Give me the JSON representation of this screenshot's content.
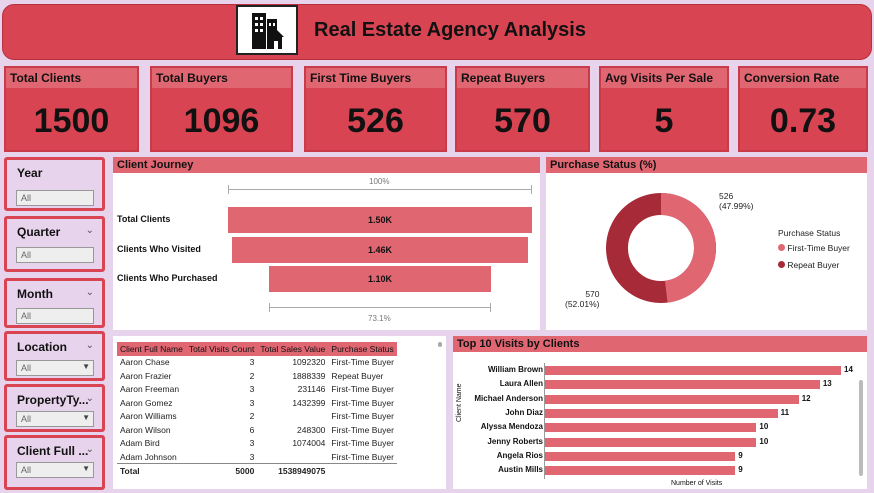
{
  "header": {
    "title": "Real Estate Agency Analysis",
    "logo_icon": "building-house-icon"
  },
  "kpis": [
    {
      "label": "Total Clients",
      "value": "1500"
    },
    {
      "label": "Total Buyers",
      "value": "1096"
    },
    {
      "label": "First Time Buyers",
      "value": "526"
    },
    {
      "label": "Repeat Buyers",
      "value": "570"
    },
    {
      "label": "Avg Visits Per Sale",
      "value": "5"
    },
    {
      "label": "Conversion Rate",
      "value": "0.73"
    }
  ],
  "slicers": [
    {
      "label": "Year",
      "value": "All"
    },
    {
      "label": "Quarter",
      "value": "All"
    },
    {
      "label": "Month",
      "value": "All"
    },
    {
      "label": "Location",
      "value": "All"
    },
    {
      "label": "PropertyTy...",
      "value": "All"
    },
    {
      "label": "Client Full ...",
      "value": "All"
    }
  ],
  "journey": {
    "title": "Client Journey",
    "top_pct": "100%",
    "bottom_pct": "73.1%",
    "stages": [
      {
        "label": "Total Clients",
        "value_label": "1.50K",
        "value": 1500
      },
      {
        "label": "Clients Who Visited",
        "value_label": "1.46K",
        "value": 1460
      },
      {
        "label": "Clients Who Purchased",
        "value_label": "1.10K",
        "value": 1096
      }
    ]
  },
  "purchase_status": {
    "title": "Purchase Status (%)",
    "legend_title": "Purchase Status",
    "first_label": "526",
    "first_pct": "(47.99%)",
    "repeat_label": "570",
    "repeat_pct": "(52.01%)",
    "legend": [
      "First-Time Buyer",
      "Repeat Buyer"
    ],
    "colors": {
      "first": "#e06672",
      "repeat": "#a72a38"
    }
  },
  "table": {
    "headers": [
      "Client Full Name",
      "Total Visits Count",
      "Total Sales Value",
      "Purchase Status"
    ],
    "rows": [
      [
        "Aaron Chase",
        "3",
        "1092320",
        "First-Time Buyer"
      ],
      [
        "Aaron Frazier",
        "2",
        "1888339",
        "Repeat Buyer"
      ],
      [
        "Aaron Freeman",
        "3",
        "231146",
        "First-Time Buyer"
      ],
      [
        "Aaron Gomez",
        "3",
        "1432399",
        "First-Time Buyer"
      ],
      [
        "Aaron Williams",
        "2",
        "",
        "First-Time Buyer"
      ],
      [
        "Aaron Wilson",
        "6",
        "248300",
        "First-Time Buyer"
      ],
      [
        "Adam Bird",
        "3",
        "1074004",
        "First-Time Buyer"
      ],
      [
        "Adam Johnson",
        "3",
        "",
        "First-Time Buyer"
      ]
    ],
    "total": [
      "Total",
      "5000",
      "1538949075",
      ""
    ]
  },
  "top_visits": {
    "title": "Top 10 Visits by Clients",
    "ylabel": "Client Name",
    "xlabel": "Number of Visits"
  },
  "chart_data": [
    {
      "type": "bar",
      "orientation": "horizontal",
      "title": "Top 10 Visits by Clients",
      "xlabel": "Number of Visits",
      "ylabel": "Client Name",
      "categories": [
        "William Brown",
        "Laura Allen",
        "Michael Anderson",
        "John Diaz",
        "Alyssa Mendoza",
        "Jenny Roberts",
        "Angela Rios",
        "Austin Mills"
      ],
      "values": [
        14,
        13,
        12,
        11,
        10,
        10,
        9,
        9
      ],
      "xlim": [
        0,
        14
      ]
    },
    {
      "type": "pie",
      "title": "Purchase Status (%)",
      "categories": [
        "First-Time Buyer",
        "Repeat Buyer"
      ],
      "values": [
        526,
        570
      ]
    }
  ]
}
